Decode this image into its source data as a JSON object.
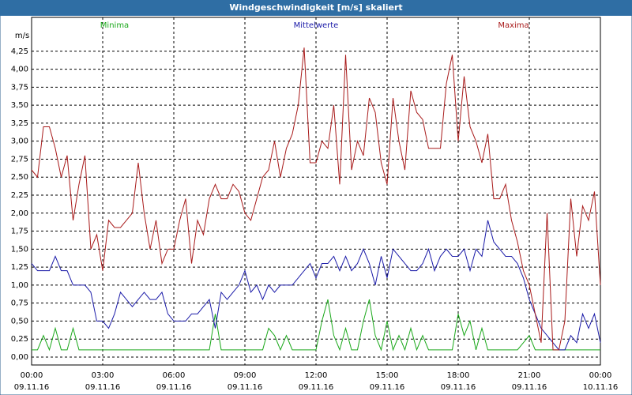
{
  "chart_data": {
    "type": "line",
    "title": "Windgeschwindigkeit [m/s] skaliert",
    "y_label": "m/s",
    "x": [
      0,
      0.25,
      0.5,
      0.75,
      1,
      1.25,
      1.5,
      1.75,
      2,
      2.25,
      2.5,
      2.75,
      3,
      3.25,
      3.5,
      3.75,
      4,
      4.25,
      4.5,
      4.75,
      5,
      5.25,
      5.5,
      5.75,
      6,
      6.25,
      6.5,
      6.75,
      7,
      7.25,
      7.5,
      7.75,
      8,
      8.25,
      8.5,
      8.75,
      9,
      9.25,
      9.5,
      9.75,
      10,
      10.25,
      10.5,
      10.75,
      11,
      11.25,
      11.5,
      11.75,
      12,
      12.25,
      12.5,
      12.75,
      13,
      13.25,
      13.5,
      13.75,
      14,
      14.25,
      14.5,
      14.75,
      15,
      15.25,
      15.5,
      15.75,
      16,
      16.25,
      16.5,
      16.75,
      17,
      17.25,
      17.5,
      17.75,
      18,
      18.25,
      18.5,
      18.75,
      19,
      19.25,
      19.5,
      19.75,
      20,
      20.25,
      20.5,
      20.75,
      21,
      21.25,
      21.5,
      21.75,
      22,
      22.25,
      22.5,
      22.75,
      23,
      23.25,
      23.5,
      23.75,
      24
    ],
    "series": [
      {
        "name": "Minima",
        "color": "#1aa81a",
        "values": [
          0.1,
          0.1,
          0.3,
          0.1,
          0.4,
          0.1,
          0.1,
          0.4,
          0.1,
          0.1,
          0.1,
          0.1,
          0.1,
          0.1,
          0.1,
          0.1,
          0.1,
          0.1,
          0.1,
          0.1,
          0.1,
          0.1,
          0.1,
          0.1,
          0.1,
          0.1,
          0.1,
          0.1,
          0.1,
          0.1,
          0.1,
          0.6,
          0.1,
          0.1,
          0.1,
          0.1,
          0.1,
          0.1,
          0.1,
          0.1,
          0.4,
          0.3,
          0.1,
          0.3,
          0.1,
          0.1,
          0.1,
          0.1,
          0.1,
          0.5,
          0.8,
          0.3,
          0.1,
          0.4,
          0.1,
          0.1,
          0.5,
          0.8,
          0.3,
          0.1,
          0.5,
          0.1,
          0.3,
          0.1,
          0.4,
          0.1,
          0.3,
          0.1,
          0.1,
          0.1,
          0.1,
          0.1,
          0.6,
          0.3,
          0.5,
          0.1,
          0.4,
          0.1,
          0.1,
          0.1,
          0.1,
          0.1,
          0.1,
          0.2,
          0.3,
          0.1,
          0.1,
          0.1,
          0.1,
          0.1,
          0.1,
          0.1,
          0.1,
          0.1,
          0.1,
          0.1,
          0.1
        ]
      },
      {
        "name": "Mittelwerte",
        "color": "#1a1aa8",
        "values": [
          1.3,
          1.2,
          1.2,
          1.2,
          1.4,
          1.2,
          1.2,
          1.0,
          1.0,
          1.0,
          0.9,
          0.5,
          0.5,
          0.4,
          0.6,
          0.9,
          0.8,
          0.7,
          0.8,
          0.9,
          0.8,
          0.8,
          0.9,
          0.6,
          0.5,
          0.5,
          0.5,
          0.6,
          0.6,
          0.7,
          0.8,
          0.4,
          0.9,
          0.8,
          0.9,
          1.0,
          1.2,
          0.9,
          1.0,
          0.8,
          1.0,
          0.9,
          1.0,
          1.0,
          1.0,
          1.1,
          1.2,
          1.3,
          1.1,
          1.3,
          1.3,
          1.4,
          1.2,
          1.4,
          1.2,
          1.3,
          1.5,
          1.3,
          1.0,
          1.4,
          1.1,
          1.5,
          1.4,
          1.3,
          1.2,
          1.2,
          1.3,
          1.5,
          1.2,
          1.4,
          1.5,
          1.4,
          1.4,
          1.5,
          1.2,
          1.5,
          1.4,
          1.9,
          1.6,
          1.5,
          1.4,
          1.4,
          1.3,
          1.1,
          0.8,
          0.6,
          0.4,
          0.3,
          0.2,
          0.1,
          0.1,
          0.3,
          0.2,
          0.6,
          0.4,
          0.6,
          0.2
        ]
      },
      {
        "name": "Maxima",
        "color": "#a81a1a",
        "values": [
          2.6,
          2.5,
          3.2,
          3.2,
          2.9,
          2.5,
          2.8,
          1.9,
          2.4,
          2.8,
          1.5,
          1.7,
          1.2,
          1.9,
          1.8,
          1.8,
          1.9,
          2.0,
          2.7,
          2.0,
          1.5,
          1.9,
          1.3,
          1.5,
          1.5,
          1.9,
          2.2,
          1.3,
          1.9,
          1.7,
          2.2,
          2.4,
          2.2,
          2.2,
          2.4,
          2.3,
          2.0,
          1.9,
          2.2,
          2.5,
          2.6,
          3.0,
          2.5,
          2.9,
          3.1,
          3.5,
          4.3,
          2.7,
          2.7,
          3.0,
          2.9,
          3.5,
          2.4,
          4.2,
          2.6,
          3.0,
          2.8,
          3.6,
          3.4,
          2.7,
          2.4,
          3.6,
          3.0,
          2.6,
          3.7,
          3.4,
          3.3,
          2.9,
          2.9,
          2.9,
          3.8,
          4.2,
          3.0,
          3.9,
          3.2,
          3.0,
          2.7,
          3.1,
          2.2,
          2.2,
          2.4,
          1.9,
          1.6,
          1.2,
          1.0,
          0.6,
          0.2,
          2.0,
          0.1,
          0.1,
          0.5,
          2.2,
          1.4,
          2.1,
          1.9,
          2.3,
          1.0
        ]
      }
    ],
    "xlim": [
      0,
      24
    ],
    "xticks": [
      {
        "value": 0,
        "label": "00:00"
      },
      {
        "value": 3,
        "label": "03:00"
      },
      {
        "value": 6,
        "label": "06:00"
      },
      {
        "value": 9,
        "label": "09:00"
      },
      {
        "value": 12,
        "label": "12:00"
      },
      {
        "value": 15,
        "label": "15:00"
      },
      {
        "value": 18,
        "label": "18:00"
      },
      {
        "value": 21,
        "label": "21:00"
      },
      {
        "value": 24,
        "label": "00:00"
      }
    ],
    "xtick_dates": [
      "09.11.16",
      "09.11.16",
      "09.11.16",
      "09.11.16",
      "09.11.16",
      "09.11.16",
      "09.11.16",
      "09.11.16",
      "10.11.16"
    ],
    "ylim": [
      -0.11,
      4.72
    ],
    "yticks": [
      {
        "value": 0,
        "label": "0,00"
      },
      {
        "value": 0.25,
        "label": "0,25"
      },
      {
        "value": 0.5,
        "label": "0,50"
      },
      {
        "value": 0.75,
        "label": "0,75"
      },
      {
        "value": 1,
        "label": "1,00"
      },
      {
        "value": 1.25,
        "label": "1,25"
      },
      {
        "value": 1.5,
        "label": "1,50"
      },
      {
        "value": 1.75,
        "label": "1,75"
      },
      {
        "value": 2,
        "label": "2,00"
      },
      {
        "value": 2.25,
        "label": "2,25"
      },
      {
        "value": 2.5,
        "label": "2,50"
      },
      {
        "value": 2.75,
        "label": "2,75"
      },
      {
        "value": 3,
        "label": "3,00"
      },
      {
        "value": 3.25,
        "label": "3,25"
      },
      {
        "value": 3.5,
        "label": "3,50"
      },
      {
        "value": 3.75,
        "label": "3,75"
      },
      {
        "value": 4,
        "label": "4,00"
      },
      {
        "value": 4.25,
        "label": "4,25"
      }
    ],
    "grid": true
  }
}
